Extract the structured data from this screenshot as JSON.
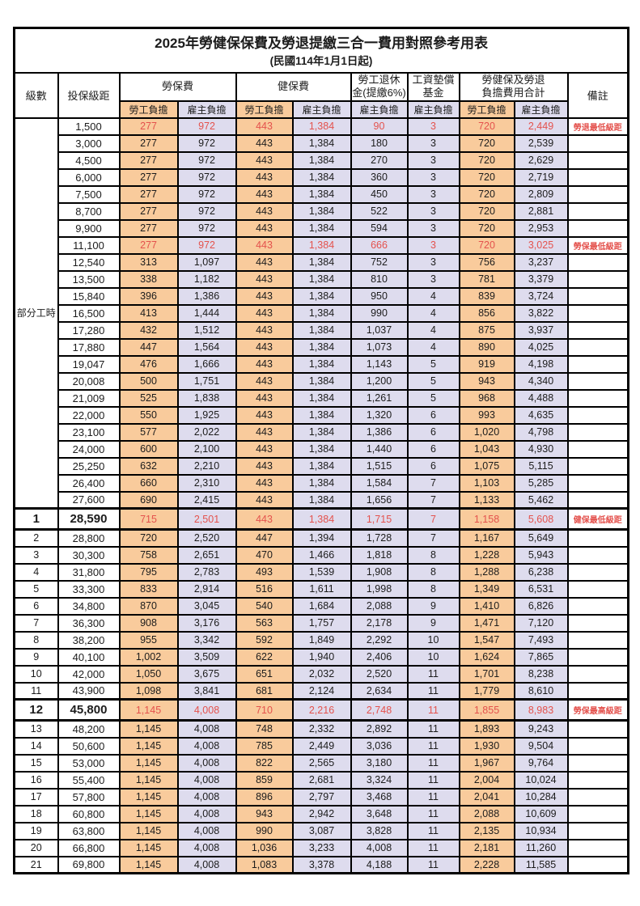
{
  "title": "2025年勞健保保費及勞退提繳三合一費用對照參考用表",
  "subtitle": "(民國114年1月1日起)",
  "colors": {
    "employee_share_bg": "#f9cb9c",
    "employer_share_bg": "#dedcee",
    "highlight_red": "#e4524d",
    "grid": "#000000"
  },
  "header": {
    "level": "級數",
    "bracket": "投保級距",
    "labor_fee": "勞保費",
    "health_fee": "健保費",
    "pension_line1": "勞工退休",
    "pension_line2": "金(提繳6%)",
    "wagefund_line1": "工資墊償",
    "wagefund_line2": "基金",
    "total_line1": "勞健保及勞退",
    "total_line2": "負擔費用合計",
    "note": "備註",
    "employee_share": "勞工負擔",
    "employer_share": "雇主負擔"
  },
  "part_time_label": "部分工時",
  "rows": [
    {
      "l": "",
      "b": "1,500",
      "v": [
        "277",
        "972",
        "443",
        "1,384",
        "90",
        "3",
        "720",
        "2,449"
      ],
      "n": "勞退最低級距",
      "red": true
    },
    {
      "l": "",
      "b": "3,000",
      "v": [
        "277",
        "972",
        "443",
        "1,384",
        "180",
        "3",
        "720",
        "2,539"
      ],
      "n": ""
    },
    {
      "l": "",
      "b": "4,500",
      "v": [
        "277",
        "972",
        "443",
        "1,384",
        "270",
        "3",
        "720",
        "2,629"
      ],
      "n": ""
    },
    {
      "l": "",
      "b": "6,000",
      "v": [
        "277",
        "972",
        "443",
        "1,384",
        "360",
        "3",
        "720",
        "2,719"
      ],
      "n": ""
    },
    {
      "l": "",
      "b": "7,500",
      "v": [
        "277",
        "972",
        "443",
        "1,384",
        "450",
        "3",
        "720",
        "2,809"
      ],
      "n": ""
    },
    {
      "l": "",
      "b": "8,700",
      "v": [
        "277",
        "972",
        "443",
        "1,384",
        "522",
        "3",
        "720",
        "2,881"
      ],
      "n": ""
    },
    {
      "l": "",
      "b": "9,900",
      "v": [
        "277",
        "972",
        "443",
        "1,384",
        "594",
        "3",
        "720",
        "2,953"
      ],
      "n": ""
    },
    {
      "l": "",
      "b": "11,100",
      "v": [
        "277",
        "972",
        "443",
        "1,384",
        "666",
        "3",
        "720",
        "3,025"
      ],
      "n": "勞保最低級距",
      "red": true
    },
    {
      "l": "",
      "b": "12,540",
      "v": [
        "313",
        "1,097",
        "443",
        "1,384",
        "752",
        "3",
        "756",
        "3,237"
      ],
      "n": ""
    },
    {
      "l": "",
      "b": "13,500",
      "v": [
        "338",
        "1,182",
        "443",
        "1,384",
        "810",
        "3",
        "781",
        "3,379"
      ],
      "n": ""
    },
    {
      "l": "",
      "b": "15,840",
      "v": [
        "396",
        "1,386",
        "443",
        "1,384",
        "950",
        "4",
        "839",
        "3,724"
      ],
      "n": ""
    },
    {
      "l": "",
      "b": "16,500",
      "v": [
        "413",
        "1,444",
        "443",
        "1,384",
        "990",
        "4",
        "856",
        "3,822"
      ],
      "n": ""
    },
    {
      "l": "",
      "b": "17,280",
      "v": [
        "432",
        "1,512",
        "443",
        "1,384",
        "1,037",
        "4",
        "875",
        "3,937"
      ],
      "n": ""
    },
    {
      "l": "",
      "b": "17,880",
      "v": [
        "447",
        "1,564",
        "443",
        "1,384",
        "1,073",
        "4",
        "890",
        "4,025"
      ],
      "n": ""
    },
    {
      "l": "",
      "b": "19,047",
      "v": [
        "476",
        "1,666",
        "443",
        "1,384",
        "1,143",
        "5",
        "919",
        "4,198"
      ],
      "n": ""
    },
    {
      "l": "",
      "b": "20,008",
      "v": [
        "500",
        "1,751",
        "443",
        "1,384",
        "1,200",
        "5",
        "943",
        "4,340"
      ],
      "n": ""
    },
    {
      "l": "",
      "b": "21,009",
      "v": [
        "525",
        "1,838",
        "443",
        "1,384",
        "1,261",
        "5",
        "968",
        "4,488"
      ],
      "n": ""
    },
    {
      "l": "",
      "b": "22,000",
      "v": [
        "550",
        "1,925",
        "443",
        "1,384",
        "1,320",
        "6",
        "993",
        "4,635"
      ],
      "n": ""
    },
    {
      "l": "",
      "b": "23,100",
      "v": [
        "577",
        "2,022",
        "443",
        "1,384",
        "1,386",
        "6",
        "1,020",
        "4,798"
      ],
      "n": ""
    },
    {
      "l": "",
      "b": "24,000",
      "v": [
        "600",
        "2,100",
        "443",
        "1,384",
        "1,440",
        "6",
        "1,043",
        "4,930"
      ],
      "n": ""
    },
    {
      "l": "",
      "b": "25,250",
      "v": [
        "632",
        "2,210",
        "443",
        "1,384",
        "1,515",
        "6",
        "1,075",
        "5,115"
      ],
      "n": ""
    },
    {
      "l": "",
      "b": "26,400",
      "v": [
        "660",
        "2,310",
        "443",
        "1,384",
        "1,584",
        "7",
        "1,103",
        "5,285"
      ],
      "n": ""
    },
    {
      "l": "",
      "b": "27,600",
      "v": [
        "690",
        "2,415",
        "443",
        "1,384",
        "1,656",
        "7",
        "1,133",
        "5,462"
      ],
      "n": ""
    },
    {
      "l": "1",
      "b": "28,590",
      "v": [
        "715",
        "2,501",
        "443",
        "1,384",
        "1,715",
        "7",
        "1,158",
        "5,608"
      ],
      "n": "健保最低級距",
      "red": true,
      "emph": true
    },
    {
      "l": "2",
      "b": "28,800",
      "v": [
        "720",
        "2,520",
        "447",
        "1,394",
        "1,728",
        "7",
        "1,167",
        "5,649"
      ],
      "n": ""
    },
    {
      "l": "3",
      "b": "30,300",
      "v": [
        "758",
        "2,651",
        "470",
        "1,466",
        "1,818",
        "8",
        "1,228",
        "5,943"
      ],
      "n": ""
    },
    {
      "l": "4",
      "b": "31,800",
      "v": [
        "795",
        "2,783",
        "493",
        "1,539",
        "1,908",
        "8",
        "1,288",
        "6,238"
      ],
      "n": ""
    },
    {
      "l": "5",
      "b": "33,300",
      "v": [
        "833",
        "2,914",
        "516",
        "1,611",
        "1,998",
        "8",
        "1,349",
        "6,531"
      ],
      "n": ""
    },
    {
      "l": "6",
      "b": "34,800",
      "v": [
        "870",
        "3,045",
        "540",
        "1,684",
        "2,088",
        "9",
        "1,410",
        "6,826"
      ],
      "n": ""
    },
    {
      "l": "7",
      "b": "36,300",
      "v": [
        "908",
        "3,176",
        "563",
        "1,757",
        "2,178",
        "9",
        "1,471",
        "7,120"
      ],
      "n": ""
    },
    {
      "l": "8",
      "b": "38,200",
      "v": [
        "955",
        "3,342",
        "592",
        "1,849",
        "2,292",
        "10",
        "1,547",
        "7,493"
      ],
      "n": ""
    },
    {
      "l": "9",
      "b": "40,100",
      "v": [
        "1,002",
        "3,509",
        "622",
        "1,940",
        "2,406",
        "10",
        "1,624",
        "7,865"
      ],
      "n": ""
    },
    {
      "l": "10",
      "b": "42,000",
      "v": [
        "1,050",
        "3,675",
        "651",
        "2,032",
        "2,520",
        "11",
        "1,701",
        "8,238"
      ],
      "n": ""
    },
    {
      "l": "11",
      "b": "43,900",
      "v": [
        "1,098",
        "3,841",
        "681",
        "2,124",
        "2,634",
        "11",
        "1,779",
        "8,610"
      ],
      "n": ""
    },
    {
      "l": "12",
      "b": "45,800",
      "v": [
        "1,145",
        "4,008",
        "710",
        "2,216",
        "2,748",
        "11",
        "1,855",
        "8,983"
      ],
      "n": "勞保最高級距",
      "red": true,
      "emph": true
    },
    {
      "l": "13",
      "b": "48,200",
      "v": [
        "1,145",
        "4,008",
        "748",
        "2,332",
        "2,892",
        "11",
        "1,893",
        "9,243"
      ],
      "n": ""
    },
    {
      "l": "14",
      "b": "50,600",
      "v": [
        "1,145",
        "4,008",
        "785",
        "2,449",
        "3,036",
        "11",
        "1,930",
        "9,504"
      ],
      "n": ""
    },
    {
      "l": "15",
      "b": "53,000",
      "v": [
        "1,145",
        "4,008",
        "822",
        "2,565",
        "3,180",
        "11",
        "1,967",
        "9,764"
      ],
      "n": ""
    },
    {
      "l": "16",
      "b": "55,400",
      "v": [
        "1,145",
        "4,008",
        "859",
        "2,681",
        "3,324",
        "11",
        "2,004",
        "10,024"
      ],
      "n": ""
    },
    {
      "l": "17",
      "b": "57,800",
      "v": [
        "1,145",
        "4,008",
        "896",
        "2,797",
        "3,468",
        "11",
        "2,041",
        "10,284"
      ],
      "n": ""
    },
    {
      "l": "18",
      "b": "60,800",
      "v": [
        "1,145",
        "4,008",
        "943",
        "2,942",
        "3,648",
        "11",
        "2,088",
        "10,609"
      ],
      "n": ""
    },
    {
      "l": "19",
      "b": "63,800",
      "v": [
        "1,145",
        "4,008",
        "990",
        "3,087",
        "3,828",
        "11",
        "2,135",
        "10,934"
      ],
      "n": ""
    },
    {
      "l": "20",
      "b": "66,800",
      "v": [
        "1,145",
        "4,008",
        "1,036",
        "3,233",
        "4,008",
        "11",
        "2,181",
        "11,260"
      ],
      "n": ""
    },
    {
      "l": "21",
      "b": "69,800",
      "v": [
        "1,145",
        "4,008",
        "1,083",
        "3,378",
        "4,188",
        "11",
        "2,228",
        "11,585"
      ],
      "n": ""
    }
  ],
  "part_time_row_span": 23,
  "value_column_keys": [
    "labor-employee",
    "labor-employer",
    "health-employee",
    "health-employer",
    "pension-employer",
    "wagefund-employer",
    "total-employee",
    "total-employer"
  ]
}
